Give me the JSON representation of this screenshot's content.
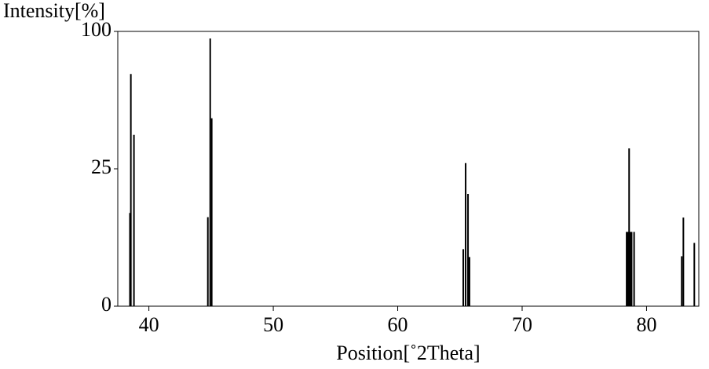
{
  "chart_data": {
    "type": "stem",
    "y_label": "Intensity[%]",
    "x_label": "Position[˚2Theta]",
    "x": [
      38.48,
      38.55,
      38.8,
      44.74,
      44.93,
      45.05,
      65.27,
      65.46,
      65.65,
      65.77,
      78.4,
      78.5,
      78.6,
      78.7,
      78.8,
      79.0,
      82.83,
      82.96,
      83.84
    ],
    "values": [
      11.5,
      71.4,
      38.9,
      10.5,
      94.9,
      46.8,
      4.3,
      27.1,
      16.7,
      3.2,
      7.3,
      7.3,
      33.0,
      7.3,
      7.3,
      7.3,
      3.3,
      10.4,
      5.3
    ],
    "color": "#000000",
    "xlim": [
      37.5,
      84.2
    ],
    "xticks": [
      40,
      50,
      60,
      70,
      80
    ],
    "ylim": [
      0,
      100
    ],
    "yticks": [
      0,
      25,
      100
    ],
    "y_scale": "sqrt"
  }
}
